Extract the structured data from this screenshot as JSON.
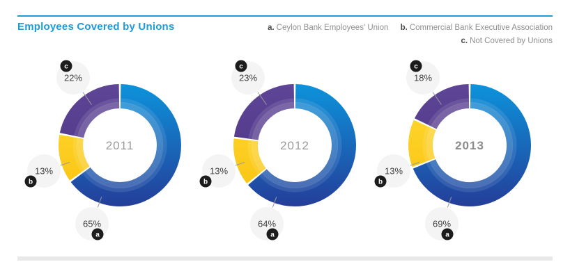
{
  "header": {
    "title": "Employees Covered by Unions"
  },
  "legend": {
    "items": [
      {
        "key_label": "a.",
        "label": "Ceylon Bank Employees' Union"
      },
      {
        "key_label": "b.",
        "label": "Commercial Bank Executive Association"
      },
      {
        "key_label": "c.",
        "label": "Not Covered by Unions"
      }
    ]
  },
  "chart_data": [
    {
      "type": "pie",
      "center_label": "2011",
      "highlighted": false,
      "unit": "%",
      "segments": [
        {
          "key": "a",
          "label": "Ceylon Bank Employees' Union",
          "value": 65
        },
        {
          "key": "b",
          "label": "Commercial Bank Executive Association",
          "value": 13
        },
        {
          "key": "c",
          "label": "Not Covered by Unions",
          "value": 22
        }
      ]
    },
    {
      "type": "pie",
      "center_label": "2012",
      "highlighted": false,
      "unit": "%",
      "segments": [
        {
          "key": "a",
          "label": "Ceylon Bank Employees' Union",
          "value": 64
        },
        {
          "key": "b",
          "label": "Commercial Bank Executive Association",
          "value": 13
        },
        {
          "key": "c",
          "label": "Not Covered by Unions",
          "value": 23
        }
      ]
    },
    {
      "type": "pie",
      "center_label": "2013",
      "highlighted": true,
      "unit": "%",
      "segments": [
        {
          "key": "a",
          "label": "Ceylon Bank Employees' Union",
          "value": 69
        },
        {
          "key": "b",
          "label": "Commercial Bank Executive Association",
          "value": 13
        },
        {
          "key": "c",
          "label": "Not Covered by Unions",
          "value": 18
        }
      ]
    }
  ],
  "colors": {
    "title": "#1C9BD9",
    "rule_top": "#1C9BD9",
    "rule_bottom": "#E9E9E9",
    "segment_a_light": "#0D93DB",
    "segment_a_dark": "#243E99",
    "segment_b_light": "#FFDA36",
    "segment_b_dark": "#F9C20D",
    "segment_c_light": "#5E4595",
    "segment_c_dark": "#4A3184",
    "bubble_bg": "#F4F4F4",
    "badge_bg": "#1C1C1C",
    "badge_text": "#FFFFFF",
    "year_text": "#9A9A9A",
    "percent_text": "#3F3F3F",
    "leader_line": "#9A9A9A",
    "legend_text": "#8F8F8F",
    "legend_key": "#4B4B4B"
  }
}
